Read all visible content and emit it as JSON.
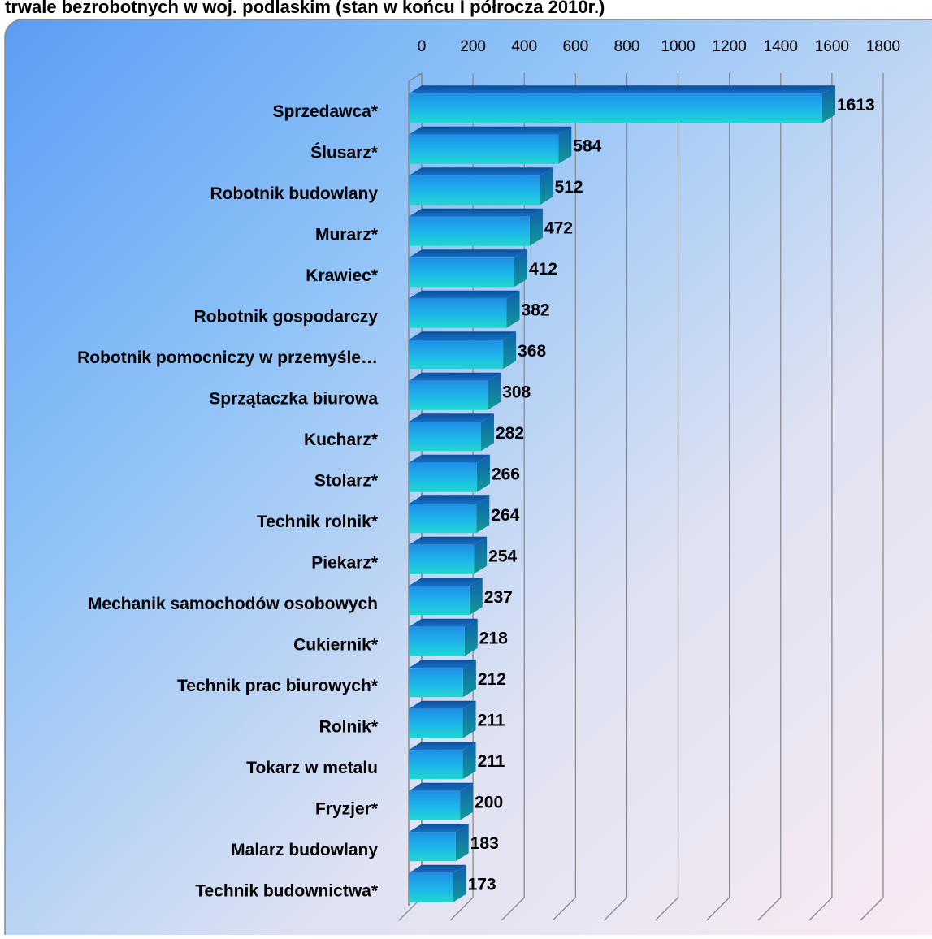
{
  "chart_data": {
    "type": "bar",
    "orientation": "horizontal",
    "title": "trwale bezrobotnych w woj. podlaskim (stan w końcu I półrocza 2010r.)",
    "categories": [
      "Sprzedawca*",
      "Ślusarz*",
      "Robotnik budowlany",
      "Murarz*",
      "Krawiec*",
      "Robotnik gospodarczy",
      "Robotnik pomocniczy w przemyśle…",
      "Sprzątaczka biurowa",
      "Kucharz*",
      "Stolarz*",
      "Technik rolnik*",
      "Piekarz*",
      "Mechanik samochodów osobowych",
      "Cukiernik*",
      "Technik prac biurowych*",
      "Rolnik*",
      "Tokarz w metalu",
      "Fryzjer*",
      "Malarz budowlany",
      "Technik budownictwa*"
    ],
    "values": [
      1613,
      584,
      512,
      472,
      412,
      382,
      368,
      308,
      282,
      266,
      264,
      254,
      237,
      218,
      212,
      211,
      211,
      200,
      183,
      173
    ],
    "color": "#1aa3e8",
    "xlim": [
      0,
      1800
    ],
    "xticks": [
      0,
      200,
      400,
      600,
      800,
      1000,
      1200,
      1400,
      1600,
      1800
    ],
    "grid": true
  }
}
